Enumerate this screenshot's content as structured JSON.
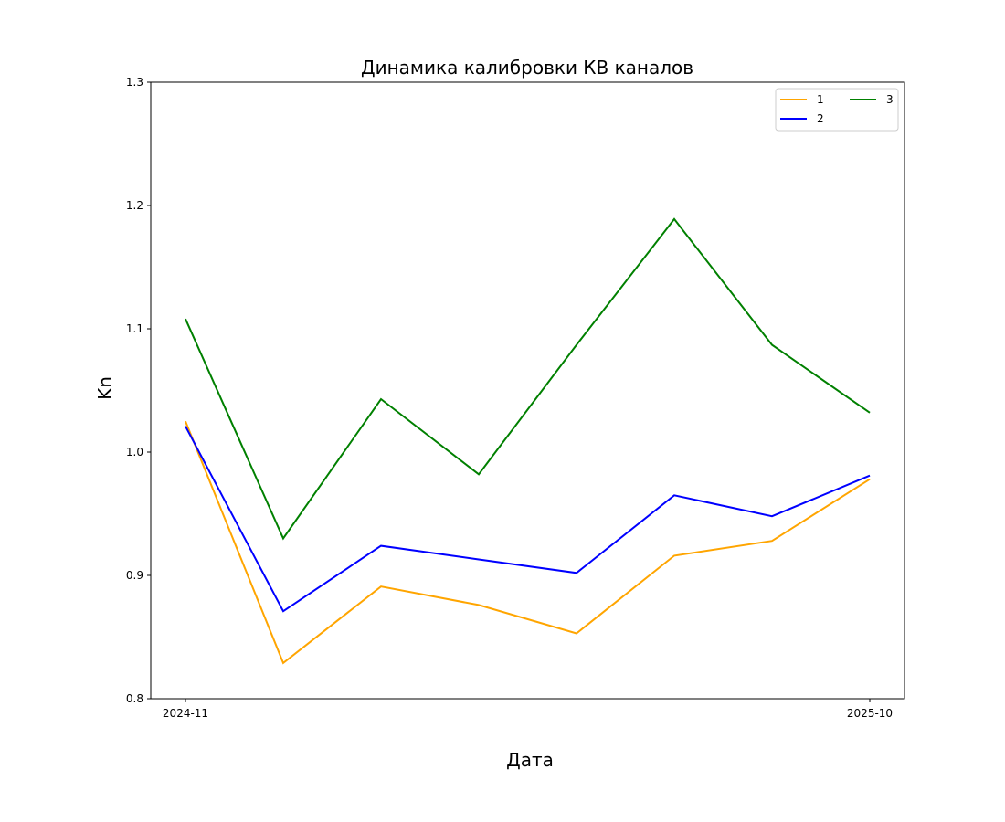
{
  "chart_data": {
    "type": "line",
    "title": "Динамика калибровки КВ каналов",
    "xlabel": "Дата",
    "ylabel": "Kn",
    "x": [
      "2024-11",
      "",
      "",
      "",
      "",
      "",
      "",
      "2025-10"
    ],
    "x_tick_labels": [
      "2024-11",
      "2025-10"
    ],
    "ylim": [
      0.8,
      1.3
    ],
    "y_ticks": [
      0.8,
      0.9,
      1.0,
      1.1,
      1.2,
      1.3
    ],
    "y_tick_labels": [
      "0.8",
      "0.9",
      "1.0",
      "1.1",
      "1.2",
      "1.3"
    ],
    "grid": false,
    "legend_position": "top-right",
    "legend_columns": 2,
    "series": [
      {
        "name": "1",
        "color": "#ffa500",
        "values": [
          1.025,
          0.829,
          0.891,
          0.876,
          0.853,
          0.916,
          0.928,
          0.978
        ]
      },
      {
        "name": "2",
        "color": "#0000ff",
        "values": [
          1.021,
          0.871,
          0.924,
          0.913,
          0.902,
          0.965,
          0.948,
          0.981
        ]
      },
      {
        "name": "3",
        "color": "#008000",
        "values": [
          1.108,
          0.93,
          1.043,
          0.982,
          1.087,
          1.189,
          1.087,
          1.032
        ]
      }
    ]
  }
}
